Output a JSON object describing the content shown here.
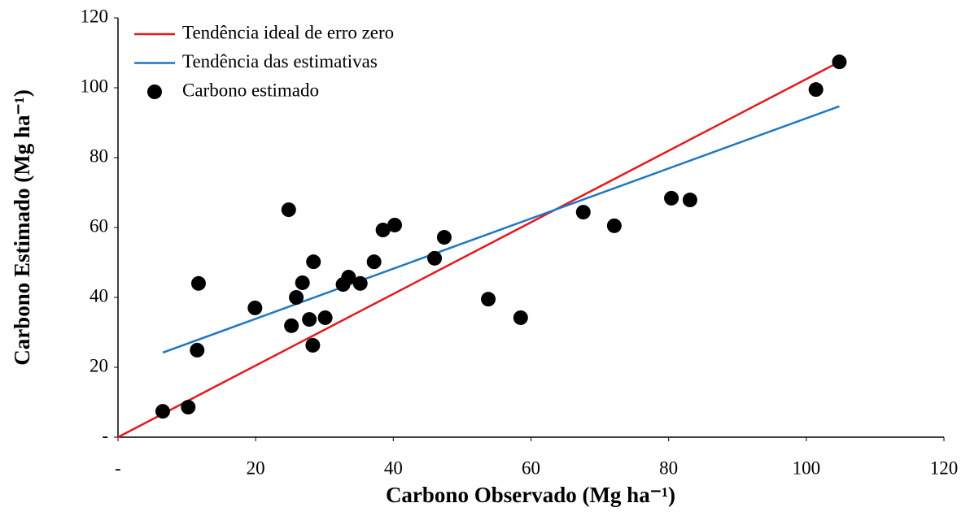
{
  "chart_data": {
    "type": "scatter",
    "x_label": "Carbono Observado (Mg ha⁻¹)",
    "y_label": "Carbono Estimado (Mg ha⁻¹)",
    "xlim": [
      0,
      120
    ],
    "ylim": [
      0,
      120
    ],
    "xticks": [
      {
        "value": 0,
        "label": "-"
      },
      20,
      40,
      60,
      80,
      100,
      120
    ],
    "yticks": [
      {
        "value": 0,
        "label": "-"
      },
      20,
      40,
      60,
      80,
      100,
      120
    ],
    "legend": "top-left",
    "series": [
      {
        "name": "Tendência ideal de erro zero",
        "color": "#e31a1c",
        "type": "line",
        "x": [
          0,
          104.8
        ],
        "values": [
          0,
          107.4
        ]
      },
      {
        "name": "Tendência das estimativas",
        "color": "#1f77c4",
        "type": "line",
        "x": [
          6.5,
          104.8
        ],
        "values": [
          24.2,
          94.7
        ]
      },
      {
        "name": "Carbono estimado",
        "color": "#000000",
        "type": "scatter",
        "x": [
          6.5,
          10.2,
          11.5,
          11.7,
          19.9,
          24.8,
          25.2,
          25.9,
          26.8,
          27.8,
          28.3,
          28.4,
          30.1,
          32.7,
          33.5,
          35.2,
          37.2,
          38.5,
          40.2,
          46.0,
          47.4,
          53.8,
          58.5,
          67.6,
          72.1,
          80.4,
          83.1,
          101.4,
          104.8
        ],
        "values": [
          7.4,
          8.6,
          24.9,
          44.0,
          37.0,
          65.1,
          31.9,
          40.0,
          44.2,
          33.7,
          26.3,
          50.2,
          34.2,
          43.7,
          45.8,
          44.0,
          50.2,
          59.3,
          60.7,
          51.2,
          57.2,
          39.5,
          34.2,
          64.4,
          60.5,
          68.4,
          67.9,
          99.5,
          107.4
        ]
      }
    ]
  }
}
